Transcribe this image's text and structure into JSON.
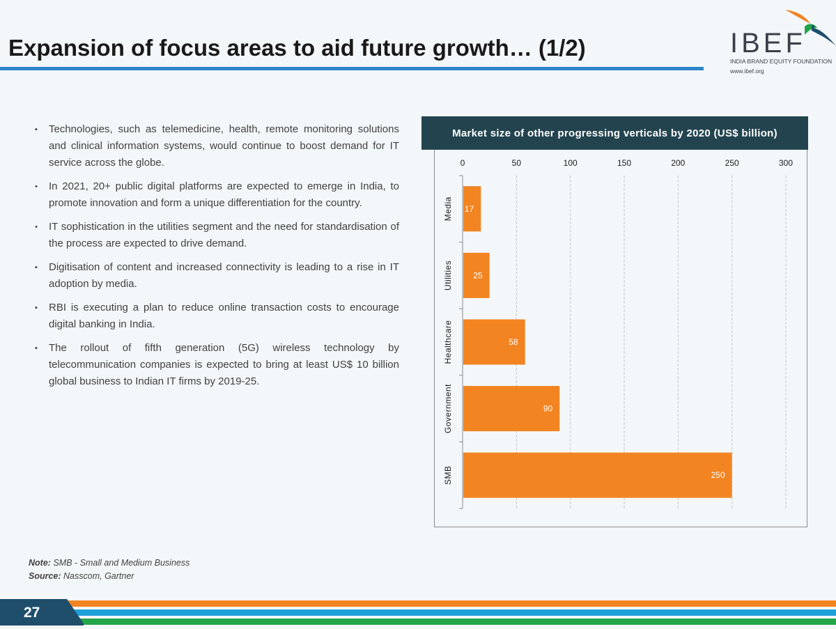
{
  "title": "Expansion of focus areas to aid future growth… (1/2)",
  "logo": {
    "name": "IBEF",
    "subtitle": "INDIA BRAND EQUITY FOUNDATION",
    "url": "www.ibef.org"
  },
  "bullets": [
    {
      "marker": "▪",
      "text": "Technologies, such as telemedicine, health, remote monitoring solutions and clinical information systems, would continue to boost demand for IT service across the globe."
    },
    {
      "marker": "•",
      "text": "In 2021, 20+ public digital platforms are expected to emerge in India, to promote innovation and form a unique differentiation for the country."
    },
    {
      "marker": "•",
      "text": "IT sophistication in the utilities segment and the need for standardisation of the process are expected to drive demand."
    },
    {
      "marker": "▪",
      "text": "Digitisation of content and increased connectivity is leading to a rise in IT adoption by media."
    },
    {
      "marker": "▪",
      "text": "RBI is executing a plan to reduce online transaction costs to encourage digital banking in India."
    },
    {
      "marker": "▪",
      "text": "The rollout of fifth generation (5G) wireless technology by telecommunication companies is expected to bring at least US$ 10 billion global business to Indian IT firms by 2019-25."
    }
  ],
  "chart_data": {
    "type": "bar",
    "orientation": "horizontal",
    "title": "Market size of other progressing verticals by 2020 (US$ billion)",
    "categories": [
      "Media",
      "Utilities",
      "Healthcare",
      "Government",
      "SMB"
    ],
    "values": [
      17,
      25,
      58,
      90,
      250
    ],
    "xlim": [
      0,
      300
    ],
    "ticks": [
      0,
      50,
      100,
      150,
      200,
      250,
      300
    ],
    "grid": true,
    "axis_position": "top",
    "bar_color": "#f28422",
    "label_color": "#ffffff"
  },
  "note": {
    "note_label": "Note:",
    "note_text": "SMB - Small and Medium Business",
    "source_label": "Source:",
    "source_text": "Nasscom, Gartner"
  },
  "footer": {
    "page_number": "27",
    "colors": {
      "badge": "#1f4e6b",
      "orange": "#f28422",
      "blue": "#1fa0d8",
      "green": "#24a54a"
    }
  }
}
